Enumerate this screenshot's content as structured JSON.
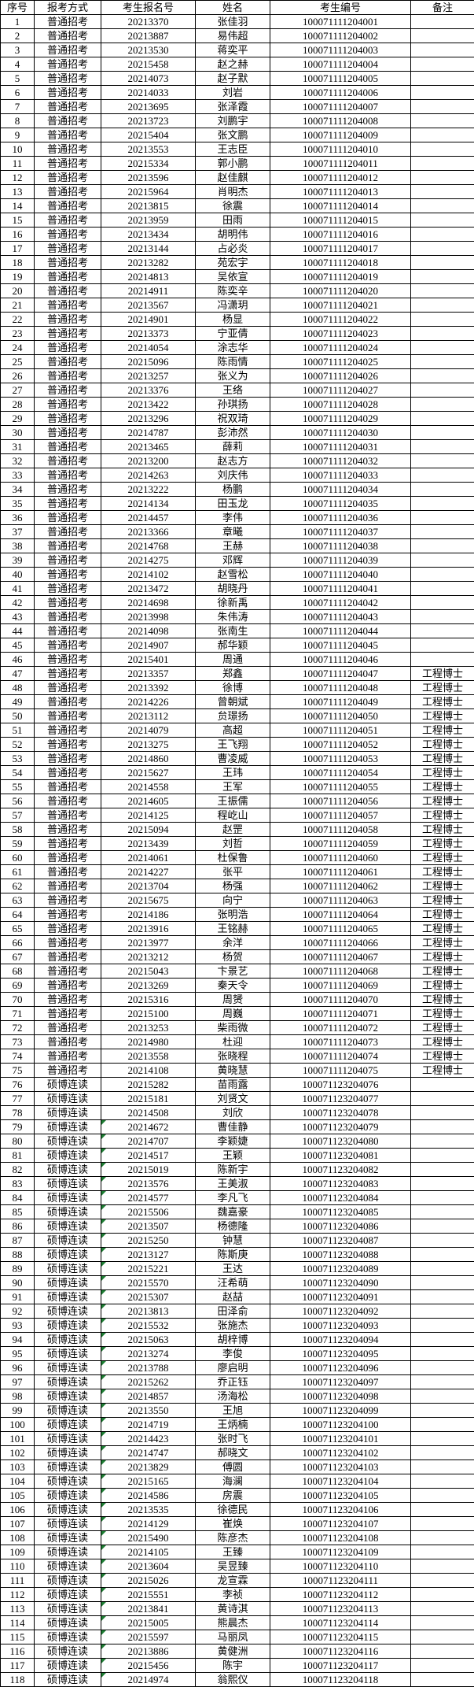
{
  "colors": {
    "border": "#000000",
    "text": "#000000",
    "background": "#ffffff",
    "error_indicator_green": "#1e7e34"
  },
  "table": {
    "columns": [
      "序号",
      "报考方式",
      "考生报名号",
      "姓名",
      "考生编号",
      "备注"
    ],
    "rows": [
      [
        "1",
        "普通招考",
        "20213370",
        "张佳羽",
        "100071111204001",
        "",
        0
      ],
      [
        "2",
        "普通招考",
        "20213887",
        "易伟超",
        "100071111204002",
        "",
        0
      ],
      [
        "3",
        "普通招考",
        "20213530",
        "蒋奕平",
        "100071111204003",
        "",
        0
      ],
      [
        "4",
        "普通招考",
        "20215458",
        "赵之赫",
        "100071111204004",
        "",
        0
      ],
      [
        "5",
        "普通招考",
        "20214073",
        "赵子默",
        "100071111204005",
        "",
        0
      ],
      [
        "6",
        "普通招考",
        "20214033",
        "刘岩",
        "100071111204006",
        "",
        0
      ],
      [
        "7",
        "普通招考",
        "20213695",
        "张泽霞",
        "100071111204007",
        "",
        0
      ],
      [
        "8",
        "普通招考",
        "20213723",
        "刘鹏宇",
        "100071111204008",
        "",
        0
      ],
      [
        "9",
        "普通招考",
        "20215404",
        "张文鹏",
        "100071111204009",
        "",
        0
      ],
      [
        "10",
        "普通招考",
        "20213553",
        "王志臣",
        "100071111204010",
        "",
        0
      ],
      [
        "11",
        "普通招考",
        "20215334",
        "郭小鹏",
        "100071111204011",
        "",
        0
      ],
      [
        "12",
        "普通招考",
        "20213596",
        "赵佳麒",
        "100071111204012",
        "",
        0
      ],
      [
        "13",
        "普通招考",
        "20215964",
        "肖明杰",
        "100071111204013",
        "",
        0
      ],
      [
        "14",
        "普通招考",
        "20213815",
        "徐震",
        "100071111204014",
        "",
        0
      ],
      [
        "15",
        "普通招考",
        "20213959",
        "田雨",
        "100071111204015",
        "",
        0
      ],
      [
        "16",
        "普通招考",
        "20213434",
        "胡明伟",
        "100071111204016",
        "",
        0
      ],
      [
        "17",
        "普通招考",
        "20213144",
        "占必炎",
        "100071111204017",
        "",
        0
      ],
      [
        "18",
        "普通招考",
        "20213282",
        "苑宏宇",
        "100071111204018",
        "",
        0
      ],
      [
        "19",
        "普通招考",
        "20214813",
        "吴依宣",
        "100071111204019",
        "",
        0
      ],
      [
        "20",
        "普通招考",
        "20214911",
        "陈奕辛",
        "100071111204020",
        "",
        0
      ],
      [
        "21",
        "普通招考",
        "20213567",
        "冯潇玥",
        "100071111204021",
        "",
        0
      ],
      [
        "22",
        "普通招考",
        "20214901",
        "杨显",
        "100071111204022",
        "",
        0
      ],
      [
        "23",
        "普通招考",
        "20213373",
        "宁亚倩",
        "100071111204023",
        "",
        0
      ],
      [
        "24",
        "普通招考",
        "20214054",
        "涂志华",
        "100071111204024",
        "",
        0
      ],
      [
        "25",
        "普通招考",
        "20215096",
        "陈雨情",
        "100071111204025",
        "",
        0
      ],
      [
        "26",
        "普通招考",
        "20213257",
        "张义为",
        "100071111204026",
        "",
        0
      ],
      [
        "27",
        "普通招考",
        "20213376",
        "王络",
        "100071111204027",
        "",
        0
      ],
      [
        "28",
        "普通招考",
        "20213422",
        "孙琪扬",
        "100071111204028",
        "",
        0
      ],
      [
        "29",
        "普通招考",
        "20213296",
        "祝双琦",
        "100071111204029",
        "",
        0
      ],
      [
        "30",
        "普通招考",
        "20214787",
        "彭沛然",
        "100071111204030",
        "",
        0
      ],
      [
        "31",
        "普通招考",
        "20213465",
        "薛莉",
        "100071111204031",
        "",
        0
      ],
      [
        "32",
        "普通招考",
        "20213200",
        "赵志方",
        "100071111204032",
        "",
        0
      ],
      [
        "33",
        "普通招考",
        "20214263",
        "刘庆伟",
        "100071111204033",
        "",
        0
      ],
      [
        "34",
        "普通招考",
        "20213222",
        "杨鹏",
        "100071111204034",
        "",
        0
      ],
      [
        "35",
        "普通招考",
        "20214134",
        "田玉龙",
        "100071111204035",
        "",
        0
      ],
      [
        "36",
        "普通招考",
        "20214457",
        "李伟",
        "100071111204036",
        "",
        0
      ],
      [
        "37",
        "普通招考",
        "20213366",
        "章曦",
        "100071111204037",
        "",
        0
      ],
      [
        "38",
        "普通招考",
        "20214768",
        "王赫",
        "100071111204038",
        "",
        0
      ],
      [
        "39",
        "普通招考",
        "20214275",
        "邓辉",
        "100071111204039",
        "",
        0
      ],
      [
        "40",
        "普通招考",
        "20214102",
        "赵雪松",
        "100071111204040",
        "",
        0
      ],
      [
        "41",
        "普通招考",
        "20213472",
        "胡晓丹",
        "100071111204041",
        "",
        0
      ],
      [
        "42",
        "普通招考",
        "20214698",
        "徐新禹",
        "100071111204042",
        "",
        0
      ],
      [
        "43",
        "普通招考",
        "20213998",
        "朱伟涛",
        "100071111204043",
        "",
        0
      ],
      [
        "44",
        "普通招考",
        "20214098",
        "张南生",
        "100071111204044",
        "",
        0
      ],
      [
        "45",
        "普通招考",
        "20214907",
        "郝华颖",
        "100071111204045",
        "",
        0
      ],
      [
        "46",
        "普通招考",
        "20215401",
        "周通",
        "100071111204046",
        "",
        0
      ],
      [
        "47",
        "普通招考",
        "20213357",
        "郑鑫",
        "100071111204047",
        "工程博士",
        0
      ],
      [
        "48",
        "普通招考",
        "20213392",
        "徐博",
        "100071111204048",
        "工程博士",
        0
      ],
      [
        "49",
        "普通招考",
        "20214226",
        "曾朝斌",
        "100071111204049",
        "工程博士",
        0
      ],
      [
        "50",
        "普通招考",
        "20213112",
        "贠璟扬",
        "100071111204050",
        "工程博士",
        0
      ],
      [
        "51",
        "普通招考",
        "20214079",
        "高超",
        "100071111204051",
        "工程博士",
        0
      ],
      [
        "52",
        "普通招考",
        "20213275",
        "王飞翔",
        "100071111204052",
        "工程博士",
        0
      ],
      [
        "53",
        "普通招考",
        "20214860",
        "曹凌威",
        "100071111204053",
        "工程博士",
        0
      ],
      [
        "54",
        "普通招考",
        "20215627",
        "王玮",
        "100071111204054",
        "工程博士",
        0
      ],
      [
        "55",
        "普通招考",
        "20214558",
        "王军",
        "100071111204055",
        "工程博士",
        0
      ],
      [
        "56",
        "普通招考",
        "20214605",
        "王振儒",
        "100071111204056",
        "工程博士",
        0
      ],
      [
        "57",
        "普通招考",
        "20214125",
        "程屹山",
        "100071111204057",
        "工程博士",
        0
      ],
      [
        "58",
        "普通招考",
        "20215094",
        "赵罡",
        "100071111204058",
        "工程博士",
        0
      ],
      [
        "59",
        "普通招考",
        "20213439",
        "刘哲",
        "100071111204059",
        "工程博士",
        0
      ],
      [
        "60",
        "普通招考",
        "20214061",
        "杜保鲁",
        "100071111204060",
        "工程博士",
        0
      ],
      [
        "61",
        "普通招考",
        "20214227",
        "张平",
        "100071111204061",
        "工程博士",
        0
      ],
      [
        "62",
        "普通招考",
        "20213704",
        "杨强",
        "100071111204062",
        "工程博士",
        0
      ],
      [
        "63",
        "普通招考",
        "20215675",
        "向宁",
        "100071111204063",
        "工程博士",
        0
      ],
      [
        "64",
        "普通招考",
        "20214186",
        "张明浩",
        "100071111204064",
        "工程博士",
        0
      ],
      [
        "65",
        "普通招考",
        "20213916",
        "王铭赫",
        "100071111204065",
        "工程博士",
        0
      ],
      [
        "66",
        "普通招考",
        "20213977",
        "余洋",
        "100071111204066",
        "工程博士",
        0
      ],
      [
        "67",
        "普通招考",
        "20213212",
        "杨贺",
        "100071111204067",
        "工程博士",
        0
      ],
      [
        "68",
        "普通招考",
        "20215043",
        "卞景艺",
        "100071111204068",
        "工程博士",
        0
      ],
      [
        "69",
        "普通招考",
        "20213269",
        "秦天令",
        "100071111204069",
        "工程博士",
        0
      ],
      [
        "70",
        "普通招考",
        "20215316",
        "周赟",
        "100071111204070",
        "工程博士",
        0
      ],
      [
        "71",
        "普通招考",
        "20215100",
        "周巍",
        "100071111204071",
        "工程博士",
        0
      ],
      [
        "72",
        "普通招考",
        "20213253",
        "柴雨微",
        "100071111204072",
        "工程博士",
        0
      ],
      [
        "73",
        "普通招考",
        "20214980",
        "杜迎",
        "100071111204073",
        "工程博士",
        0
      ],
      [
        "74",
        "普通招考",
        "20213558",
        "张晓程",
        "100071111204074",
        "工程博士",
        0
      ],
      [
        "75",
        "普通招考",
        "20214108",
        "黄晓慧",
        "100071111204075",
        "工程博士",
        0
      ],
      [
        "76",
        "硕博连读",
        "20215282",
        "苗雨露",
        "100071123204076",
        "",
        0
      ],
      [
        "77",
        "硕博连读",
        "20215181",
        "刘贤文",
        "100071123204077",
        "",
        0
      ],
      [
        "78",
        "硕博连读",
        "20214508",
        "刘欣",
        "100071123204078",
        "",
        0
      ],
      [
        "79",
        "硕博连读",
        "20214672",
        "曹佳静",
        "100071123204079",
        "",
        1
      ],
      [
        "80",
        "硕博连读",
        "20214707",
        "李颖婕",
        "100071123204080",
        "",
        1
      ],
      [
        "81",
        "硕博连读",
        "20214517",
        "王颖",
        "100071123204081",
        "",
        1
      ],
      [
        "82",
        "硕博连读",
        "20215019",
        "陈新宇",
        "100071123204082",
        "",
        1
      ],
      [
        "83",
        "硕博连读",
        "20213576",
        "王美淑",
        "100071123204083",
        "",
        1
      ],
      [
        "84",
        "硕博连读",
        "20214577",
        "李凡飞",
        "100071123204084",
        "",
        1
      ],
      [
        "85",
        "硕博连读",
        "20215506",
        "魏嘉豪",
        "100071123204085",
        "",
        1
      ],
      [
        "86",
        "硕博连读",
        "20213507",
        "杨德隆",
        "100071123204086",
        "",
        1
      ],
      [
        "87",
        "硕博连读",
        "20215250",
        "钟慧",
        "100071123204087",
        "",
        1
      ],
      [
        "88",
        "硕博连读",
        "20213127",
        "陈斯庚",
        "100071123204088",
        "",
        1
      ],
      [
        "89",
        "硕博连读",
        "20215221",
        "王达",
        "100071123204089",
        "",
        1
      ],
      [
        "90",
        "硕博连读",
        "20215570",
        "汪希萌",
        "100071123204090",
        "",
        1
      ],
      [
        "91",
        "硕博连读",
        "20215307",
        "赵喆",
        "100071123204091",
        "",
        1
      ],
      [
        "92",
        "硕博连读",
        "20213813",
        "田泽俞",
        "100071123204092",
        "",
        1
      ],
      [
        "93",
        "硕博连读",
        "20215532",
        "张施杰",
        "100071123204093",
        "",
        1
      ],
      [
        "94",
        "硕博连读",
        "20215063",
        "胡梓博",
        "100071123204094",
        "",
        1
      ],
      [
        "95",
        "硕博连读",
        "20213274",
        "李俊",
        "100071123204095",
        "",
        1
      ],
      [
        "96",
        "硕博连读",
        "20213788",
        "廖启明",
        "100071123204096",
        "",
        1
      ],
      [
        "97",
        "硕博连读",
        "20215262",
        "乔正钰",
        "100071123204097",
        "",
        1
      ],
      [
        "98",
        "硕博连读",
        "20214857",
        "汤海松",
        "100071123204098",
        "",
        1
      ],
      [
        "99",
        "硕博连读",
        "20213550",
        "王旭",
        "100071123204099",
        "",
        1
      ],
      [
        "100",
        "硕博连读",
        "20214719",
        "王炳楠",
        "100071123204100",
        "",
        1
      ],
      [
        "101",
        "硕博连读",
        "20214423",
        "张时飞",
        "100071123204101",
        "",
        1
      ],
      [
        "102",
        "硕博连读",
        "20214747",
        "郝晓文",
        "100071123204102",
        "",
        1
      ],
      [
        "103",
        "硕博连读",
        "20213829",
        "傅圆",
        "100071123204103",
        "",
        1
      ],
      [
        "104",
        "硕博连读",
        "20215165",
        "海澜",
        "100071123204104",
        "",
        1
      ],
      [
        "105",
        "硕博连读",
        "20214586",
        "房震",
        "100071123204105",
        "",
        1
      ],
      [
        "106",
        "硕博连读",
        "20213535",
        "徐德民",
        "100071123204106",
        "",
        1
      ],
      [
        "107",
        "硕博连读",
        "20214129",
        "崔焕",
        "100071123204107",
        "",
        1
      ],
      [
        "108",
        "硕博连读",
        "20215490",
        "陈彦杰",
        "100071123204108",
        "",
        1
      ],
      [
        "109",
        "硕博连读",
        "20214105",
        "王臻",
        "100071123204109",
        "",
        1
      ],
      [
        "110",
        "硕博连读",
        "20213604",
        "吴昱臻",
        "100071123204110",
        "",
        1
      ],
      [
        "111",
        "硕博连读",
        "20215026",
        "龙宣霖",
        "100071123204111",
        "",
        1
      ],
      [
        "112",
        "硕博连读",
        "20215551",
        "李祯",
        "100071123204112",
        "",
        1
      ],
      [
        "113",
        "硕博连读",
        "20213841",
        "黄诗淇",
        "100071123204113",
        "",
        1
      ],
      [
        "114",
        "硕博连读",
        "20215005",
        "熊晨杰",
        "100071123204114",
        "",
        1
      ],
      [
        "115",
        "硕博连读",
        "20215597",
        "马丽凤",
        "100071123204115",
        "",
        1
      ],
      [
        "116",
        "硕博连读",
        "20213886",
        "黄健洲",
        "100071123204116",
        "",
        1
      ],
      [
        "117",
        "硕博连读",
        "20215456",
        "陈宇",
        "100071123204117",
        "",
        1
      ],
      [
        "118",
        "硕博连读",
        "20214974",
        "翁熙仪",
        "100071123204118",
        "",
        1
      ]
    ]
  }
}
